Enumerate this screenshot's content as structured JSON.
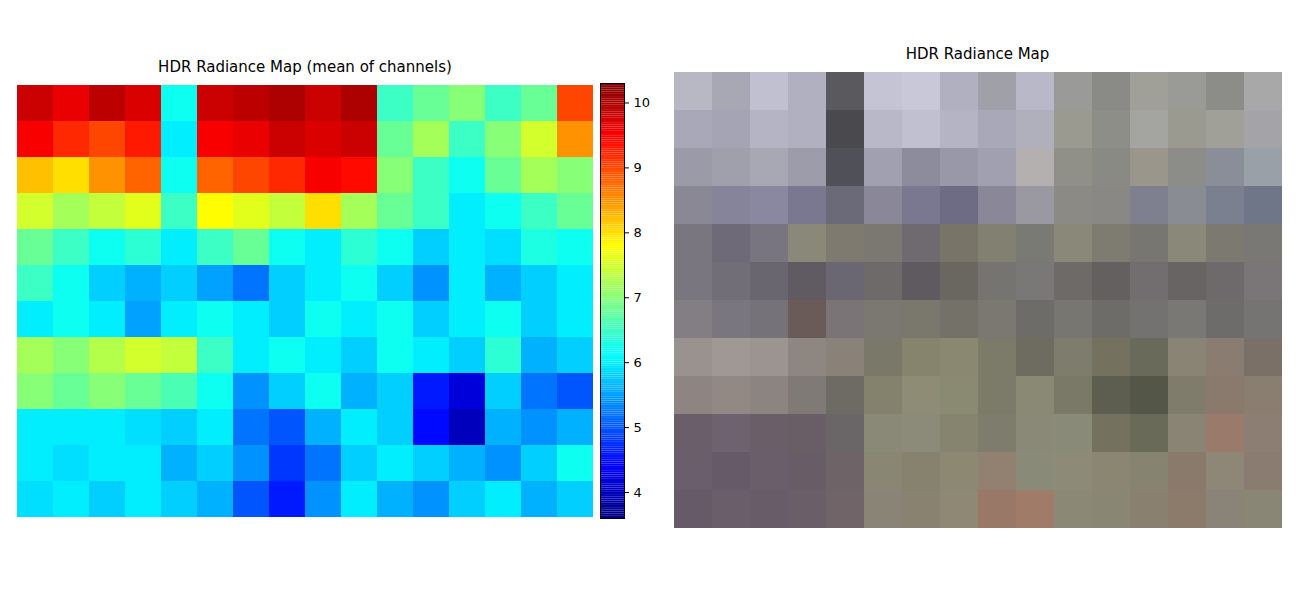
{
  "chart_data": [
    {
      "type": "heatmap",
      "title": "HDR Radiance Map (mean of channels)",
      "color": "jet",
      "tick_labels": false,
      "cells": [
        [
          9.8,
          9.6,
          9.9,
          9.7,
          6.2,
          9.8,
          9.9,
          10.0,
          9.8,
          10.0,
          6.5,
          6.8,
          7.0,
          6.5,
          6.8,
          9.0
        ],
        [
          9.5,
          9.2,
          9.0,
          9.3,
          6.0,
          9.5,
          9.6,
          9.8,
          9.7,
          9.8,
          6.8,
          7.2,
          6.5,
          7.0,
          7.5,
          8.5
        ],
        [
          8.2,
          8.0,
          8.5,
          8.8,
          6.2,
          8.8,
          9.0,
          9.2,
          9.5,
          9.4,
          7.0,
          6.5,
          6.2,
          6.8,
          7.2,
          7.0
        ],
        [
          7.5,
          7.2,
          7.4,
          7.6,
          6.5,
          7.8,
          7.6,
          7.4,
          8.0,
          7.2,
          6.8,
          6.5,
          6.0,
          6.2,
          6.5,
          6.8
        ],
        [
          6.8,
          6.5,
          6.2,
          6.4,
          6.0,
          6.5,
          6.8,
          6.2,
          6.0,
          6.4,
          6.2,
          5.8,
          6.0,
          5.9,
          6.3,
          6.2
        ],
        [
          6.5,
          6.2,
          5.8,
          5.6,
          5.8,
          5.5,
          5.2,
          5.8,
          6.0,
          6.2,
          5.8,
          5.4,
          6.0,
          5.6,
          5.8,
          6.0
        ],
        [
          6.0,
          6.2,
          6.0,
          5.5,
          6.0,
          6.2,
          6.0,
          5.8,
          6.2,
          6.0,
          6.2,
          5.8,
          6.0,
          6.2,
          5.8,
          6.0
        ],
        [
          7.2,
          7.0,
          7.3,
          7.5,
          7.4,
          6.5,
          6.0,
          6.2,
          6.0,
          5.8,
          6.2,
          6.0,
          5.8,
          6.4,
          5.6,
          5.8
        ],
        [
          7.0,
          6.8,
          7.0,
          6.8,
          6.6,
          6.2,
          5.4,
          5.8,
          6.2,
          5.6,
          5.8,
          4.6,
          4.2,
          5.8,
          5.2,
          5.0
        ],
        [
          6.0,
          6.0,
          6.0,
          5.9,
          5.8,
          6.0,
          5.2,
          5.0,
          5.6,
          6.0,
          5.8,
          4.5,
          4.0,
          5.6,
          5.4,
          5.6
        ],
        [
          6.0,
          5.9,
          6.0,
          6.0,
          5.6,
          5.8,
          5.4,
          4.8,
          5.2,
          5.8,
          6.0,
          5.8,
          5.6,
          5.4,
          5.8,
          6.2
        ],
        [
          5.9,
          6.0,
          5.8,
          6.0,
          5.8,
          5.6,
          5.0,
          4.6,
          5.4,
          6.0,
          5.6,
          5.4,
          5.8,
          6.0,
          5.6,
          5.8
        ]
      ],
      "colorbar_range": [
        3.6,
        10.3
      ],
      "colorbar_ticks": [
        4,
        5,
        6,
        7,
        8,
        9,
        10
      ]
    },
    {
      "type": "image",
      "title": "HDR Radiance Map",
      "tick_labels": false,
      "colors": [
        [
          "#b8b8c4",
          "#a8a8b4",
          "#c0c0d0",
          "#b0b0c0",
          "#5a5a5e",
          "#c4c4d4",
          "#c8c8d8",
          "#b0b0c0",
          "#a0a0a8",
          "#b8b8c8",
          "#9a9a98",
          "#8a8a86",
          "#a0a098",
          "#9a9a96",
          "#8c8c88",
          "#a8a8a8"
        ],
        [
          "#a8a8b8",
          "#a4a4b4",
          "#b4b4c4",
          "#b0b0c0",
          "#4a4a4e",
          "#b8b8c8",
          "#c0c0d0",
          "#b4b4c4",
          "#a8a8b8",
          "#b0b0bc",
          "#9a9a90",
          "#8e8e88",
          "#a4a4a0",
          "#9a9a90",
          "#a0a098",
          "#a4a4a8"
        ],
        [
          "#9a9aa8",
          "#a0a0ac",
          "#a8a8b4",
          "#9c9caa",
          "#505058",
          "#a0a0b0",
          "#8c8c9c",
          "#9898a8",
          "#a0a0b0",
          "#b4b0b0",
          "#909088",
          "#8a8a84",
          "#9a968c",
          "#8c8c88",
          "#8a8e98",
          "#9aa0a8"
        ],
        [
          "#8a8894",
          "#86849a",
          "#8a88a0",
          "#7a7890",
          "#6a6a78",
          "#8a8898",
          "#7a7890",
          "#6e6c84",
          "#8a8898",
          "#9a98a0",
          "#8c8a84",
          "#8a8884",
          "#7e8090",
          "#8a8c94",
          "#7a8090",
          "#6e7688"
        ],
        [
          "#7a7680",
          "#6e6a78",
          "#787480",
          "#8a8878",
          "#7e7a70",
          "#7a7870",
          "#6e6a70",
          "#787468",
          "#828070",
          "#7a7a74",
          "#8a8878",
          "#7e7c70",
          "#787670",
          "#8a8878",
          "#7c7a70",
          "#7a7874"
        ],
        [
          "#7a7680",
          "#726e78",
          "#6a6670",
          "#605a62",
          "#6a6672",
          "#6e6a6a",
          "#5e5a60",
          "#6a6660",
          "#767470",
          "#7a7876",
          "#6e6a68",
          "#646060",
          "#726e70",
          "#686464",
          "#6e6a6c",
          "#7a7678"
        ],
        [
          "#827e84",
          "#7a7680",
          "#76727a",
          "#6a5a58",
          "#7a7476",
          "#7a7870",
          "#7a786c",
          "#747268",
          "#7a7870",
          "#6e6c68",
          "#787670",
          "#6e6c68",
          "#747270",
          "#7a7874",
          "#6e6c6a",
          "#767472"
        ],
        [
          "#9a928e",
          "#a09894",
          "#9c9490",
          "#8e8680",
          "#8a8278",
          "#7a7868",
          "#86846c",
          "#8a8870",
          "#7c7a68",
          "#6e6c60",
          "#7e7c6c",
          "#74725e",
          "#6a6a5a",
          "#8a8474",
          "#8a7c70",
          "#7a7068"
        ],
        [
          "#8e8482",
          "#928884",
          "#8c8480",
          "#807a76",
          "#6e6a64",
          "#84826c",
          "#8e8c74",
          "#8a8a72",
          "#7c7a68",
          "#8a8a74",
          "#7a7866",
          "#5e5e50",
          "#545648",
          "#807c6c",
          "#8a7a6e",
          "#8a7e70"
        ],
        [
          "#6a5e6a",
          "#6e6270",
          "#6a5e68",
          "#6a5e66",
          "#6a6668",
          "#8a8876",
          "#8c8a78",
          "#86846e",
          "#7e7c6c",
          "#8a8876",
          "#8a8a78",
          "#74725e",
          "#6a6a58",
          "#8a8474",
          "#9a7a6a",
          "#8c7e72"
        ],
        [
          "#6a5e6c",
          "#665a68",
          "#6a5e6a",
          "#685c66",
          "#6e6468",
          "#8a8674",
          "#86826e",
          "#8c8872",
          "#928070",
          "#8a8a78",
          "#8e8a78",
          "#8a8672",
          "#868470",
          "#8a7a6c",
          "#8e8676",
          "#8a7c70"
        ],
        [
          "#665a68",
          "#6a5e6a",
          "#685c68",
          "#6a5e68",
          "#706468",
          "#8a8476",
          "#8a8270",
          "#8e8874",
          "#9a7868",
          "#a07c68",
          "#8c8876",
          "#8a8674",
          "#8a8070",
          "#8c7a6a",
          "#8a8478",
          "#8a8676"
        ]
      ]
    }
  ]
}
